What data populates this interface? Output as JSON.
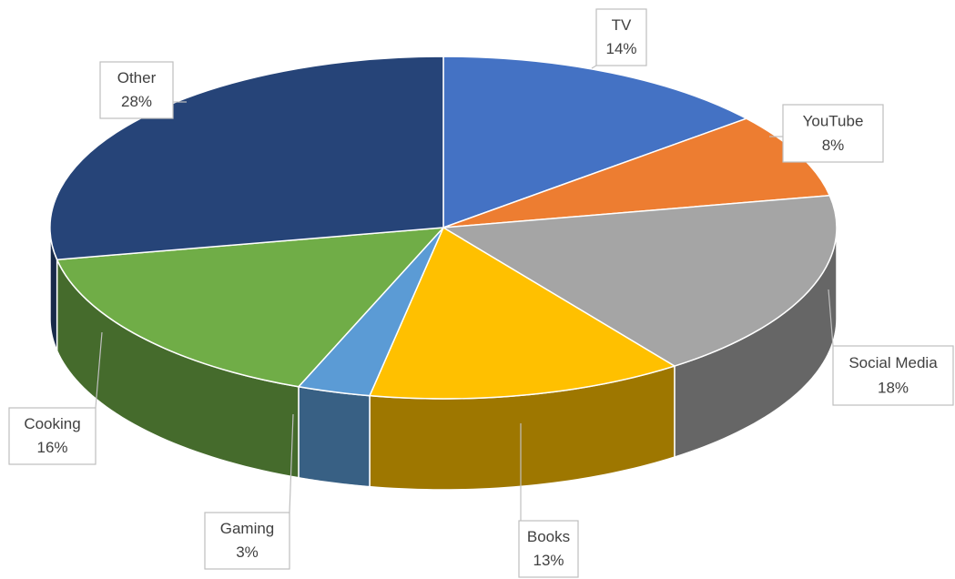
{
  "chart_data": {
    "type": "pie",
    "categories": [
      "TV",
      "YouTube",
      "Social Media",
      "Books",
      "Gaming",
      "Cooking",
      "Other"
    ],
    "values": [
      14,
      8,
      18,
      13,
      3,
      16,
      28
    ],
    "value_labels": [
      "14%",
      "8%",
      "18%",
      "13%",
      "3%",
      "16%",
      "28%"
    ],
    "colors": [
      "#4472c4",
      "#ed7d31",
      "#a5a5a5",
      "#ffc000",
      "#5b9bd5",
      "#70ad47",
      "#264478"
    ]
  }
}
